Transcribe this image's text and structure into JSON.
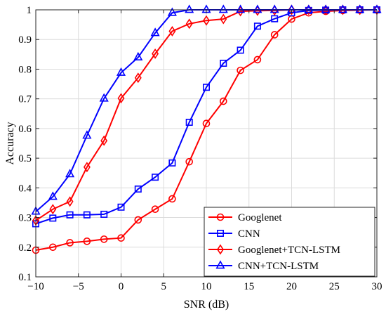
{
  "chart_data": {
    "type": "line",
    "title": "",
    "xlabel": "SNR (dB)",
    "ylabel": "Accuracy",
    "xlim": [
      -10,
      30
    ],
    "ylim": [
      0.1,
      1.0
    ],
    "grid": true,
    "legend_position": "bottom-right",
    "x": [
      -10,
      -8,
      -6,
      -4,
      -2,
      0,
      2,
      4,
      6,
      8,
      10,
      12,
      14,
      16,
      18,
      20,
      22,
      24,
      26,
      28,
      30
    ],
    "x_tick_labels": [
      "−10",
      "−5",
      "0",
      "5",
      "10",
      "15",
      "20",
      "25",
      "30"
    ],
    "y_tick_labels": [
      "0.1",
      "0.2",
      "0.3",
      "0.4",
      "0.5",
      "0.6",
      "0.7",
      "0.8",
      "0.9",
      "1"
    ],
    "series": [
      {
        "name": "Googlenet",
        "color": "#ff0000",
        "marker": "circle",
        "values": [
          0.19,
          0.2,
          0.215,
          0.22,
          0.227,
          0.231,
          0.292,
          0.328,
          0.363,
          0.488,
          0.617,
          0.692,
          0.796,
          0.832,
          0.916,
          0.969,
          0.99,
          0.995,
          0.998,
          0.999,
          1.0
        ]
      },
      {
        "name": "CNN",
        "color": "#0000ff",
        "marker": "square",
        "values": [
          0.279,
          0.298,
          0.309,
          0.309,
          0.311,
          0.335,
          0.396,
          0.436,
          0.484,
          0.621,
          0.739,
          0.82,
          0.864,
          0.945,
          0.97,
          0.99,
          0.998,
          0.999,
          1.0,
          1.0,
          1.0
        ]
      },
      {
        "name": "Googlenet+TCN-LSTM",
        "color": "#ff0000",
        "marker": "diamond",
        "values": [
          0.29,
          0.328,
          0.354,
          0.47,
          0.559,
          0.702,
          0.771,
          0.852,
          0.928,
          0.953,
          0.964,
          0.969,
          0.995,
          0.997,
          0.998,
          1.0,
          1.0,
          1.0,
          1.0,
          1.0,
          1.0
        ]
      },
      {
        "name": "CNN+TCN-LSTM",
        "color": "#0000ff",
        "marker": "triangle",
        "values": [
          0.32,
          0.37,
          0.446,
          0.576,
          0.701,
          0.788,
          0.84,
          0.922,
          0.99,
          1.0,
          1.0,
          1.0,
          1.0,
          1.0,
          1.0,
          1.0,
          1.0,
          1.0,
          1.0,
          1.0,
          1.0
        ]
      }
    ]
  }
}
